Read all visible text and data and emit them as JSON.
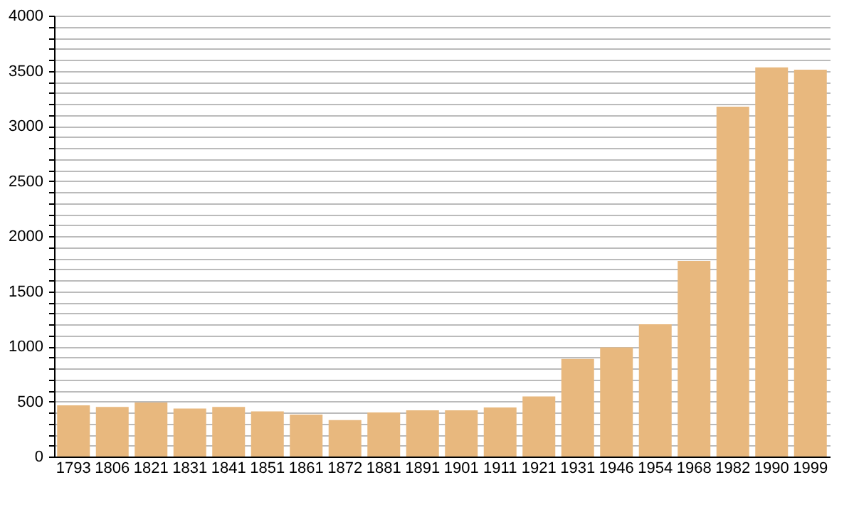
{
  "chart_data": {
    "type": "bar",
    "categories": [
      "1793",
      "1806",
      "1821",
      "1831",
      "1841",
      "1851",
      "1861",
      "1872",
      "1881",
      "1891",
      "1901",
      "1911",
      "1921",
      "1931",
      "1946",
      "1954",
      "1968",
      "1982",
      "1990",
      "1999"
    ],
    "values": [
      465,
      450,
      490,
      435,
      450,
      410,
      380,
      330,
      400,
      420,
      420,
      445,
      545,
      885,
      990,
      1200,
      1775,
      3175,
      3530,
      3510
    ],
    "color": "#e8b87e",
    "ylim": [
      0,
      4000
    ],
    "yticks": [
      0,
      {
        "value": 100,
        "label": null
      },
      {
        "value": 200,
        "label": null
      },
      {
        "value": 300,
        "label": null
      },
      {
        "value": 400,
        "label": null
      },
      500,
      {
        "value": 600,
        "label": null
      },
      {
        "value": 700,
        "label": null
      },
      {
        "value": 800,
        "label": null
      },
      {
        "value": 900,
        "label": null
      },
      1000,
      {
        "value": 1100,
        "label": null
      },
      {
        "value": 1200,
        "label": null
      },
      {
        "value": 1300,
        "label": null
      },
      {
        "value": 1400,
        "label": null
      },
      1500,
      {
        "value": 1600,
        "label": null
      },
      {
        "value": 1700,
        "label": null
      },
      {
        "value": 1800,
        "label": null
      },
      {
        "value": 1900,
        "label": null
      },
      2000,
      {
        "value": 2100,
        "label": null
      },
      {
        "value": 2200,
        "label": null
      },
      {
        "value": 2300,
        "label": null
      },
      {
        "value": 2400,
        "label": null
      },
      2500,
      {
        "value": 2600,
        "label": null
      },
      {
        "value": 2700,
        "label": null
      },
      {
        "value": 2800,
        "label": null
      },
      {
        "value": 2900,
        "label": null
      },
      3000,
      {
        "value": 3100,
        "label": null
      },
      {
        "value": 3200,
        "label": null
      },
      {
        "value": 3300,
        "label": null
      },
      {
        "value": 3400,
        "label": null
      },
      3500,
      {
        "value": 3600,
        "label": null
      },
      {
        "value": 3700,
        "label": null
      },
      {
        "value": 3800,
        "label": null
      },
      {
        "value": 3900,
        "label": null
      },
      4000
    ],
    "grid": "y"
  }
}
